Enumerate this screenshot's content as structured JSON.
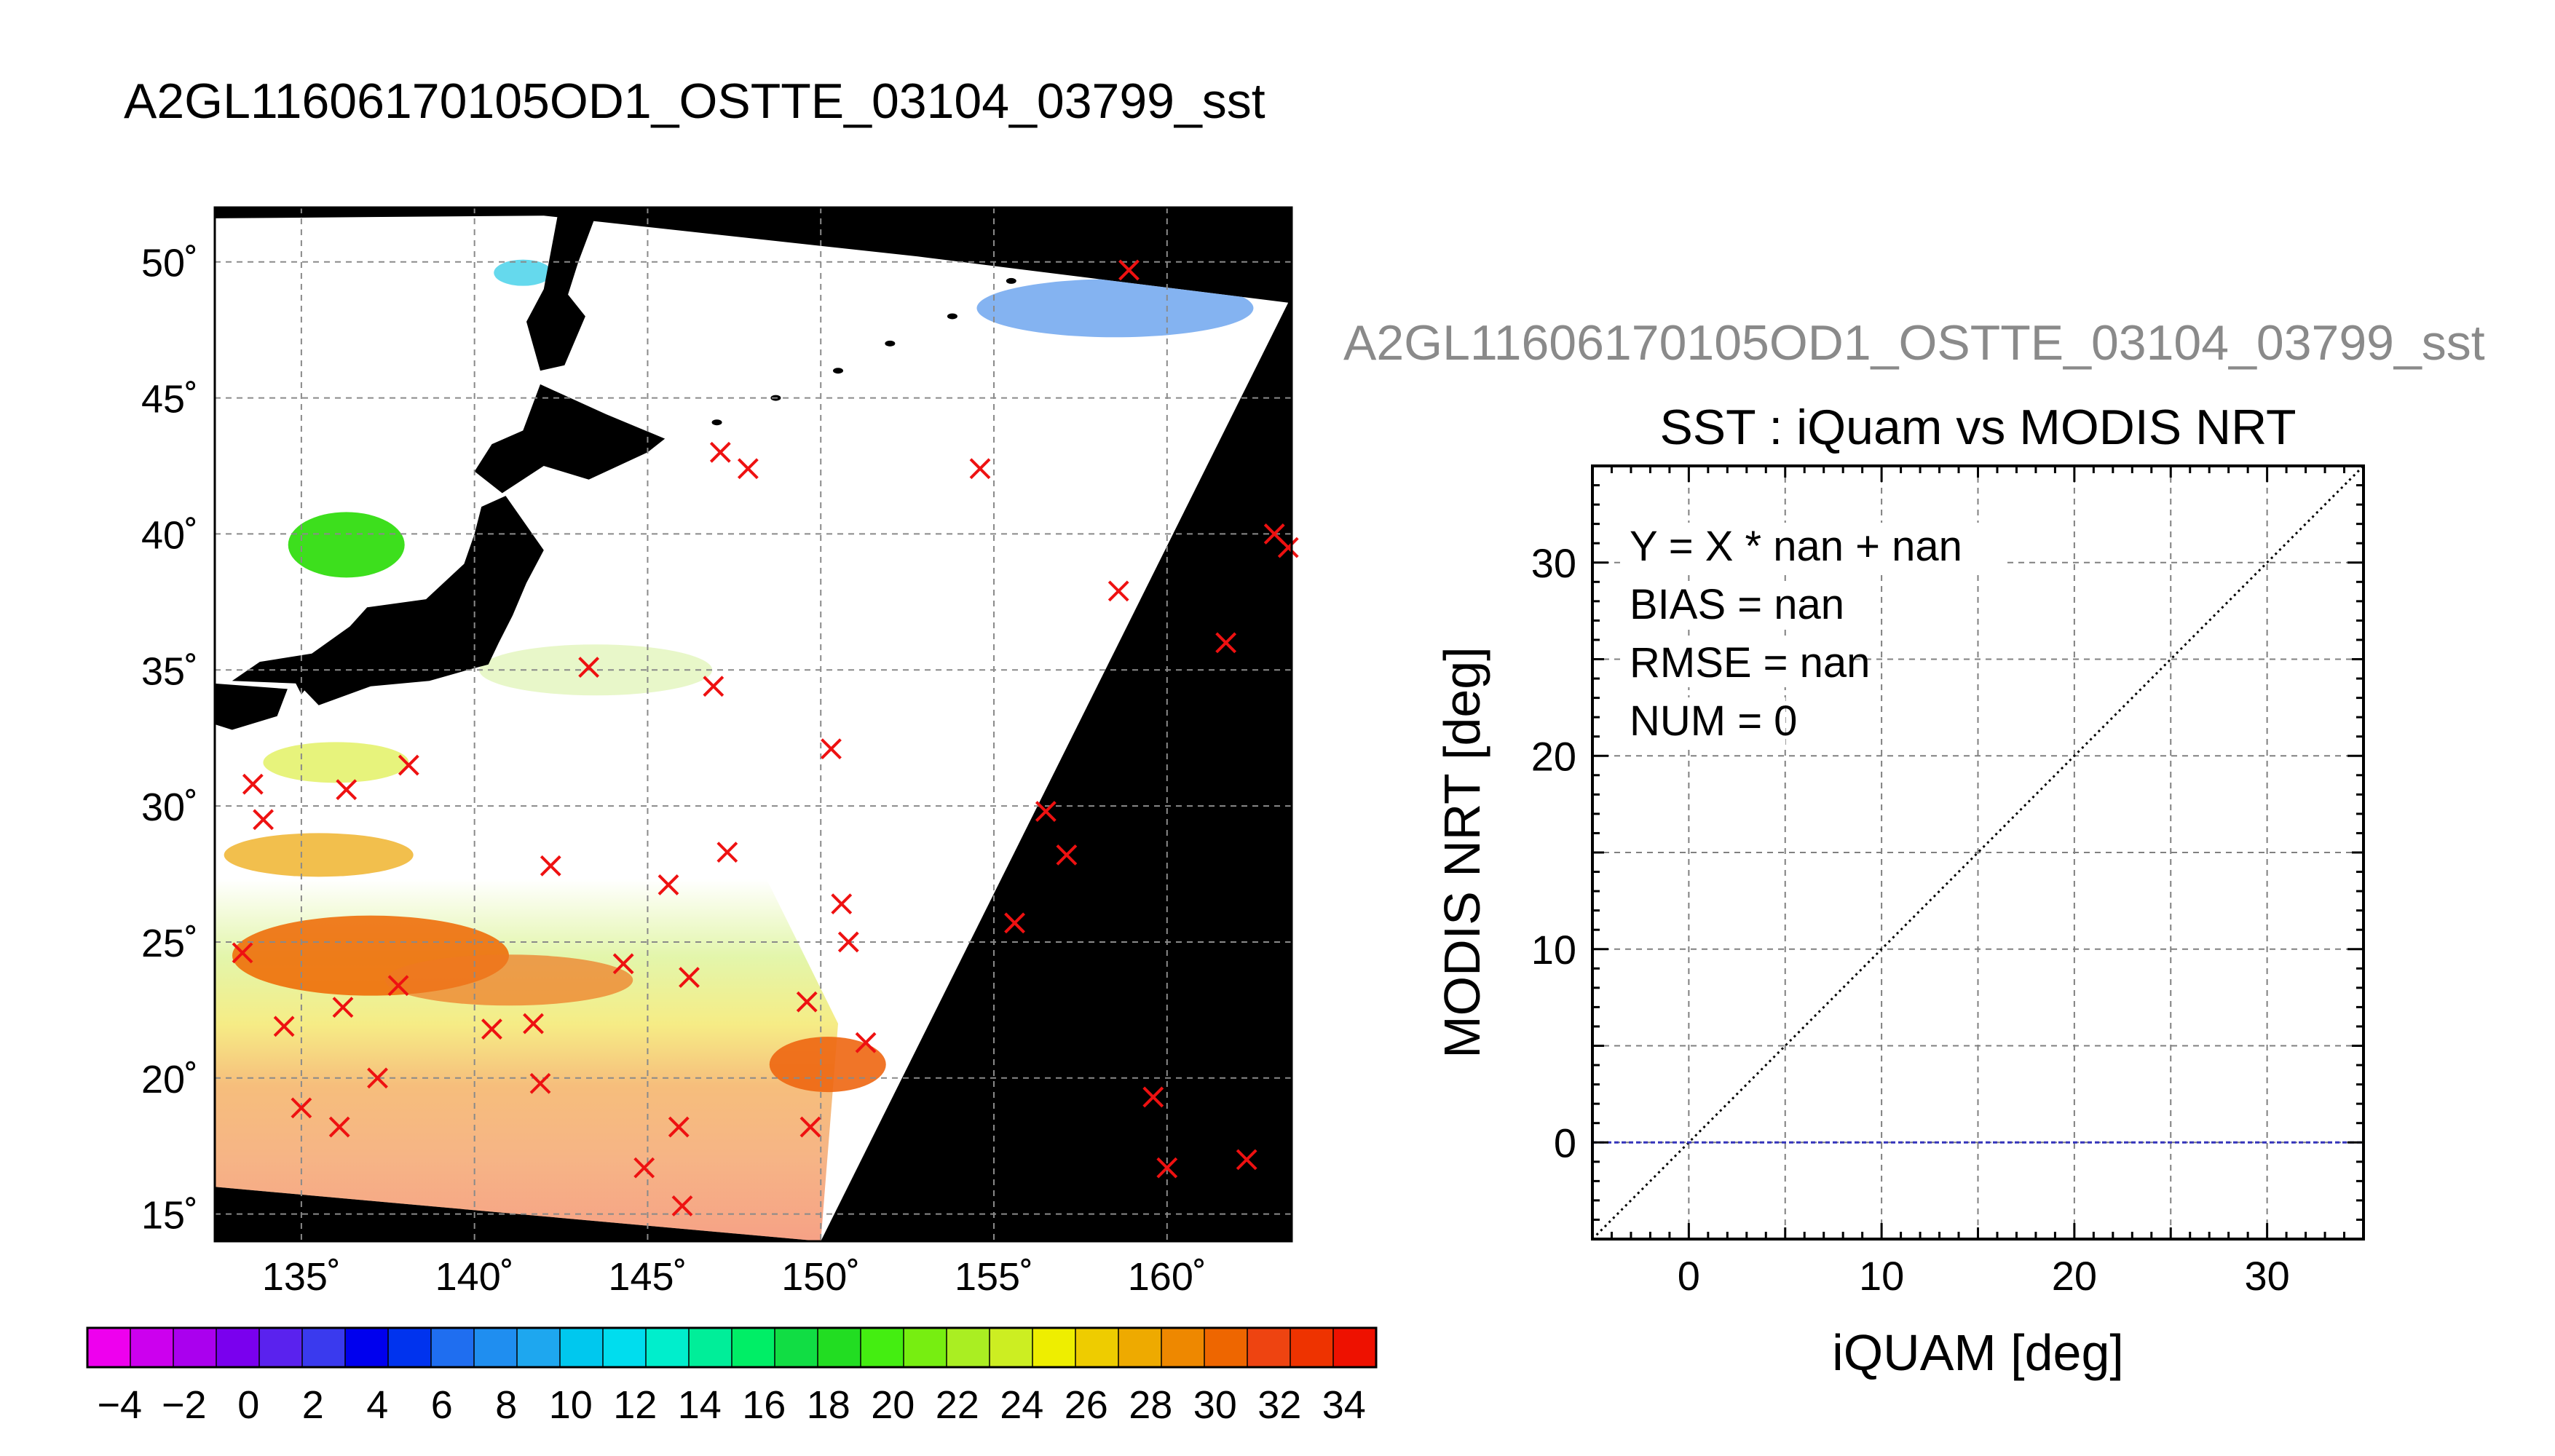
{
  "figure_title": "A2GL11606170105OD1_OSTTE_03104_03799_sst",
  "chart_data": [
    {
      "type": "heatmap",
      "title": "",
      "xlabel": "",
      "ylabel": "",
      "xlim": [
        132.5,
        163.6
      ],
      "ylim": [
        14.0,
        52.0
      ],
      "x_ticks": [
        135,
        140,
        145,
        150,
        155,
        160
      ],
      "x_tick_labels": [
        "135˚",
        "140˚",
        "145˚",
        "150˚",
        "155˚",
        "160˚"
      ],
      "y_ticks": [
        15,
        20,
        25,
        30,
        35,
        40,
        45,
        50
      ],
      "y_tick_labels": [
        "15˚",
        "20˚",
        "25˚",
        "30˚",
        "35˚",
        "40˚",
        "45˚",
        "50˚"
      ],
      "grid": true,
      "colorbar": {
        "min": -5,
        "max": 35,
        "tick_values": [
          -4,
          -2,
          0,
          2,
          4,
          6,
          8,
          10,
          12,
          14,
          16,
          18,
          20,
          22,
          24,
          26,
          28,
          30,
          32,
          34
        ],
        "tick_labels": [
          "−4",
          "−2",
          "0",
          "2",
          "4",
          "6",
          "8",
          "10",
          "12",
          "14",
          "16",
          "18",
          "20",
          "22",
          "24",
          "26",
          "28",
          "30",
          "32",
          "34"
        ],
        "colors": [
          "#ee00ee",
          "#cc00ee",
          "#aa00ee",
          "#7a00ee",
          "#5a22ee",
          "#3a3aee",
          "#0000ee",
          "#0033ee",
          "#1f6ef0",
          "#1f8ef0",
          "#1ea7ef",
          "#00c8ee",
          "#00ddee",
          "#00eecc",
          "#00ee99",
          "#00ee66",
          "#11dd44",
          "#22dd22",
          "#44ee11",
          "#77ee11",
          "#aaee22",
          "#ccee22",
          "#eeee00",
          "#eecc00",
          "#eeaa00",
          "#ee8800",
          "#ee6600",
          "#ee4411",
          "#ee3300",
          "#ee1100"
        ]
      },
      "swath_corners": [
        [
          132.5,
          51.6
        ],
        [
          142.0,
          51.7
        ],
        [
          152.8,
          50.2
        ],
        [
          163.5,
          48.5
        ],
        [
          150.0,
          14.0
        ],
        [
          132.5,
          16.0
        ]
      ],
      "matchups": [
        [
          133.6,
          30.8
        ],
        [
          133.9,
          29.5
        ],
        [
          133.3,
          24.6
        ],
        [
          134.5,
          21.9
        ],
        [
          135.0,
          18.9
        ],
        [
          136.1,
          18.2
        ],
        [
          136.2,
          22.6
        ],
        [
          136.3,
          30.6
        ],
        [
          137.2,
          20.0
        ],
        [
          137.8,
          23.4
        ],
        [
          138.1,
          31.5
        ],
        [
          140.5,
          21.8
        ],
        [
          141.7,
          22.0
        ],
        [
          141.9,
          19.8
        ],
        [
          142.2,
          27.8
        ],
        [
          143.3,
          35.1
        ],
        [
          144.3,
          24.2
        ],
        [
          144.9,
          16.7
        ],
        [
          145.6,
          27.1
        ],
        [
          145.9,
          18.2
        ],
        [
          146.0,
          15.3
        ],
        [
          146.2,
          23.7
        ],
        [
          146.9,
          34.4
        ],
        [
          147.1,
          43.0
        ],
        [
          147.3,
          28.3
        ],
        [
          147.9,
          42.4
        ],
        [
          149.6,
          22.8
        ],
        [
          149.7,
          18.2
        ],
        [
          150.3,
          32.1
        ],
        [
          150.6,
          26.4
        ],
        [
          150.8,
          25.0
        ],
        [
          151.3,
          21.3
        ],
        [
          154.6,
          42.4
        ],
        [
          155.6,
          25.7
        ],
        [
          156.5,
          29.8
        ],
        [
          157.1,
          28.2
        ],
        [
          158.6,
          37.9
        ],
        [
          158.9,
          49.7
        ],
        [
          159.6,
          19.3
        ],
        [
          160.0,
          16.7
        ],
        [
          161.7,
          36.0
        ],
        [
          162.3,
          17.0
        ],
        [
          163.1,
          40.0
        ],
        [
          163.5,
          39.5
        ]
      ]
    },
    {
      "type": "scatter",
      "title": "SST : iQuam vs MODIS NRT",
      "xlabel": "iQUAM [deg]",
      "ylabel": "MODIS NRT [deg]",
      "xlim": [
        -5,
        35
      ],
      "ylim": [
        -5,
        35
      ],
      "x_ticks": [
        0,
        10,
        20,
        30
      ],
      "y_ticks": [
        0,
        10,
        20,
        30
      ],
      "grid": true,
      "annotations": [
        "Y = X * nan + nan",
        "BIAS = nan",
        "RMSE = nan",
        "NUM = 0"
      ],
      "reference_lines": [
        {
          "kind": "one-to-one",
          "style": "dotted",
          "color": "#000000"
        },
        {
          "kind": "horizontal",
          "y": 0,
          "style": "dashed",
          "color": "#3333bb"
        }
      ],
      "points": []
    }
  ]
}
